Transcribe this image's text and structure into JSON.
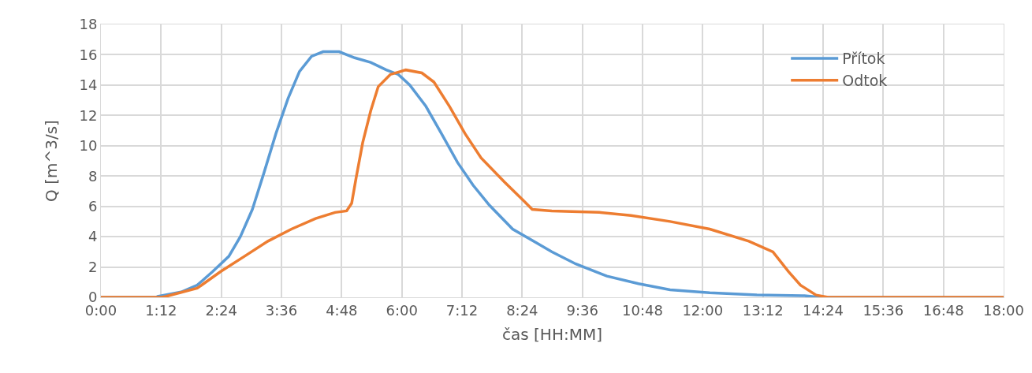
{
  "chart_data": {
    "type": "line",
    "xlabel": "čas [HH:MM]",
    "ylabel": "Q [m^3/s]",
    "xlim": [
      0,
      18
    ],
    "ylim": [
      0,
      18
    ],
    "xticks": [
      {
        "value": 0,
        "label": "0:00"
      },
      {
        "value": 1.2,
        "label": "1:12"
      },
      {
        "value": 2.4,
        "label": "2:24"
      },
      {
        "value": 3.6,
        "label": "3:36"
      },
      {
        "value": 4.8,
        "label": "4:48"
      },
      {
        "value": 6,
        "label": "6:00"
      },
      {
        "value": 7.2,
        "label": "7:12"
      },
      {
        "value": 8.4,
        "label": "8:24"
      },
      {
        "value": 9.6,
        "label": "9:36"
      },
      {
        "value": 10.8,
        "label": "10:48"
      },
      {
        "value": 12,
        "label": "12:00"
      },
      {
        "value": 13.2,
        "label": "13:12"
      },
      {
        "value": 14.4,
        "label": "14:24"
      },
      {
        "value": 15.6,
        "label": "15:36"
      },
      {
        "value": 16.8,
        "label": "16:48"
      },
      {
        "value": 18,
        "label": "18:00"
      }
    ],
    "yticks": [
      0,
      2,
      4,
      6,
      8,
      10,
      12,
      14,
      16,
      18
    ],
    "grid": true,
    "legend": "top right",
    "marker": "none",
    "line_style": "solid",
    "series": [
      {
        "name": "Přítok",
        "color": "#5b9bd5",
        "x": [
          0,
          1.1,
          1.13,
          1.6,
          1.92,
          2.23,
          2.55,
          2.78,
          3.02,
          3.25,
          3.49,
          3.73,
          3.96,
          4.2,
          4.43,
          4.75,
          5.06,
          5.38,
          5.69,
          5.93,
          6.16,
          6.48,
          6.79,
          7.11,
          7.42,
          7.74,
          8.21,
          8.68,
          8.99,
          9.47,
          10.09,
          10.72,
          11.35,
          12.14,
          13.08,
          14.03,
          14.34,
          18
        ],
        "values": [
          0,
          0,
          0.05,
          0.35,
          0.8,
          1.7,
          2.7,
          4.0,
          5.8,
          8.2,
          10.8,
          13.1,
          14.9,
          15.9,
          16.2,
          16.2,
          15.8,
          15.5,
          15.0,
          14.7,
          14.0,
          12.6,
          10.8,
          8.9,
          7.4,
          6.1,
          4.5,
          3.6,
          3.0,
          2.2,
          1.4,
          0.9,
          0.5,
          0.3,
          0.15,
          0.1,
          0,
          0
        ]
      },
      {
        "name": "Odtok",
        "color": "#ed7d31",
        "x": [
          0,
          1.2,
          1.29,
          1.92,
          2.39,
          2.86,
          3.33,
          3.8,
          4.28,
          4.67,
          4.9,
          5.0,
          5.09,
          5.22,
          5.38,
          5.53,
          5.77,
          6.08,
          6.4,
          6.64,
          6.95,
          7.26,
          7.58,
          8.05,
          8.36,
          8.6,
          8.99,
          9.94,
          10.57,
          11.35,
          12.14,
          12.92,
          13.4,
          13.71,
          13.95,
          14.26,
          14.5,
          18
        ],
        "values": [
          0,
          0,
          0.05,
          0.6,
          1.7,
          2.7,
          3.7,
          4.5,
          5.2,
          5.6,
          5.7,
          6.2,
          7.9,
          10.2,
          12.3,
          13.9,
          14.7,
          15.0,
          14.8,
          14.2,
          12.6,
          10.8,
          9.2,
          7.6,
          6.6,
          5.8,
          5.7,
          5.6,
          5.4,
          5.0,
          4.5,
          3.7,
          3.0,
          1.7,
          0.8,
          0.15,
          0,
          0
        ]
      }
    ]
  }
}
